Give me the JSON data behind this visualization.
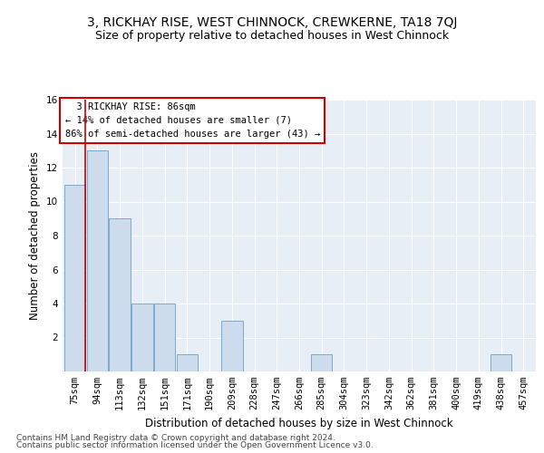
{
  "title": "3, RICKHAY RISE, WEST CHINNOCK, CREWKERNE, TA18 7QJ",
  "subtitle": "Size of property relative to detached houses in West Chinnock",
  "xlabel": "Distribution of detached houses by size in West Chinnock",
  "ylabel": "Number of detached properties",
  "footnote1": "Contains HM Land Registry data © Crown copyright and database right 2024.",
  "footnote2": "Contains public sector information licensed under the Open Government Licence v3.0.",
  "annotation_line1": "  3 RICKHAY RISE: 86sqm",
  "annotation_line2": "← 14% of detached houses are smaller (7)",
  "annotation_line3": "86% of semi-detached houses are larger (43) →",
  "bar_color": "#ccdcec",
  "bar_edge_color": "#7aaace",
  "vline_color": "#cc0000",
  "annotation_box_edge_color": "#cc0000",
  "background_color": "#e8eef5",
  "grid_color": "#ffffff",
  "categories": [
    "75sqm",
    "94sqm",
    "113sqm",
    "132sqm",
    "151sqm",
    "171sqm",
    "190sqm",
    "209sqm",
    "228sqm",
    "247sqm",
    "266sqm",
    "285sqm",
    "304sqm",
    "323sqm",
    "342sqm",
    "362sqm",
    "381sqm",
    "400sqm",
    "419sqm",
    "438sqm",
    "457sqm"
  ],
  "values": [
    11,
    13,
    9,
    4,
    4,
    1,
    0,
    3,
    0,
    0,
    0,
    1,
    0,
    0,
    0,
    0,
    0,
    0,
    0,
    1,
    0
  ],
  "ylim": [
    0,
    16
  ],
  "yticks": [
    0,
    2,
    4,
    6,
    8,
    10,
    12,
    14,
    16
  ],
  "title_fontsize": 10,
  "subtitle_fontsize": 9,
  "axis_label_fontsize": 8.5,
  "tick_fontsize": 7.5,
  "annotation_fontsize": 7.5,
  "footnote_fontsize": 6.5
}
